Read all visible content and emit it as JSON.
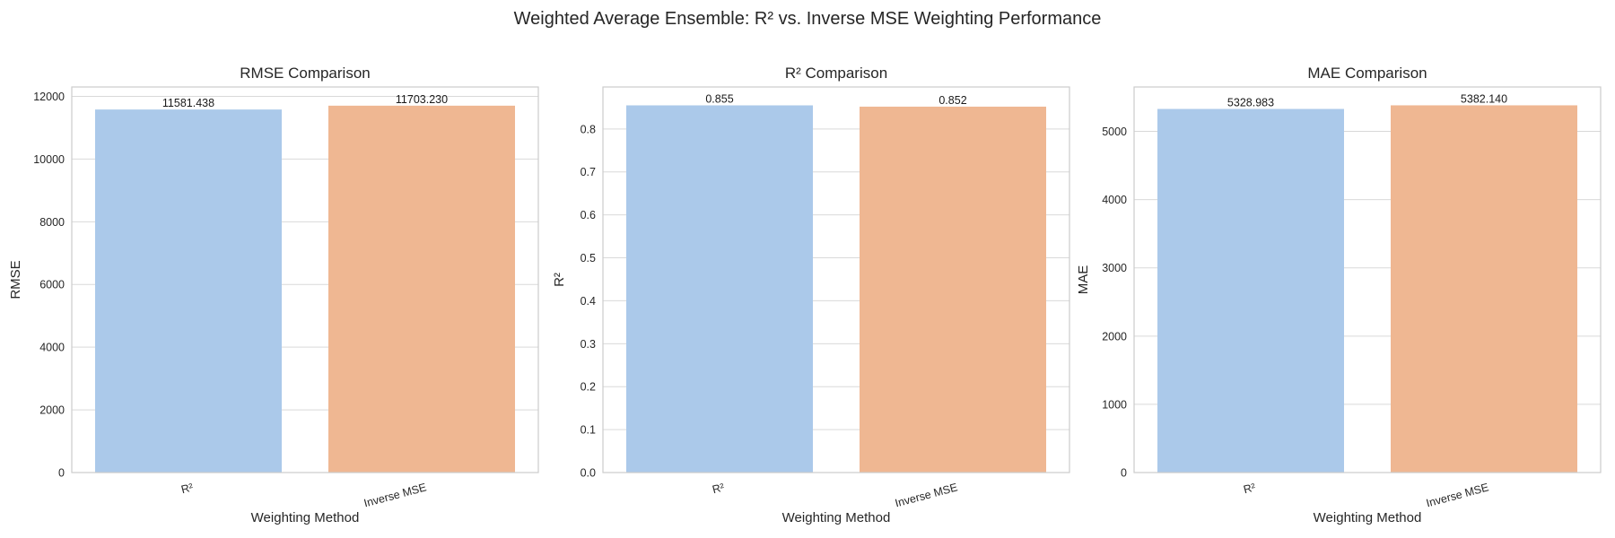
{
  "figure": {
    "title": "Weighted Average Ensemble: R² vs. Inverse MSE Weighting Performance"
  },
  "colors": {
    "series": [
      "#abc9ea",
      "#efb792"
    ],
    "grid": "#d9d9d9",
    "frame": "#cccccc"
  },
  "chart_data": [
    {
      "type": "bar",
      "title": "RMSE Comparison",
      "xlabel": "Weighting Method",
      "ylabel": "RMSE",
      "categories": [
        "R²",
        "Inverse MSE"
      ],
      "values": [
        11581.438,
        11703.23
      ],
      "value_labels": [
        "11581.438",
        "11703.230"
      ],
      "ylim": [
        0,
        12300
      ],
      "yticks": [
        0,
        2000,
        4000,
        6000,
        8000,
        10000,
        12000
      ],
      "ytick_labels": [
        "0",
        "2000",
        "4000",
        "6000",
        "8000",
        "10000",
        "12000"
      ],
      "grid": true
    },
    {
      "type": "bar",
      "title": "R² Comparison",
      "xlabel": "Weighting Method",
      "ylabel": "R²",
      "categories": [
        "R²",
        "Inverse MSE"
      ],
      "values": [
        0.855,
        0.852
      ],
      "value_labels": [
        "0.855",
        "0.852"
      ],
      "ylim": [
        0,
        0.8978
      ],
      "yticks": [
        0.0,
        0.1,
        0.2,
        0.3,
        0.4,
        0.5,
        0.6,
        0.7,
        0.8
      ],
      "ytick_labels": [
        "0.0",
        "0.1",
        "0.2",
        "0.3",
        "0.4",
        "0.5",
        "0.6",
        "0.7",
        "0.8"
      ],
      "grid": true
    },
    {
      "type": "bar",
      "title": "MAE Comparison",
      "xlabel": "Weighting Method",
      "ylabel": "MAE",
      "categories": [
        "R²",
        "Inverse MSE"
      ],
      "values": [
        5328.983,
        5382.14
      ],
      "value_labels": [
        "5328.983",
        "5382.140"
      ],
      "ylim": [
        0,
        5651
      ],
      "yticks": [
        0,
        1000,
        2000,
        3000,
        4000,
        5000
      ],
      "ytick_labels": [
        "0",
        "1000",
        "2000",
        "3000",
        "4000",
        "5000"
      ],
      "grid": true
    }
  ]
}
